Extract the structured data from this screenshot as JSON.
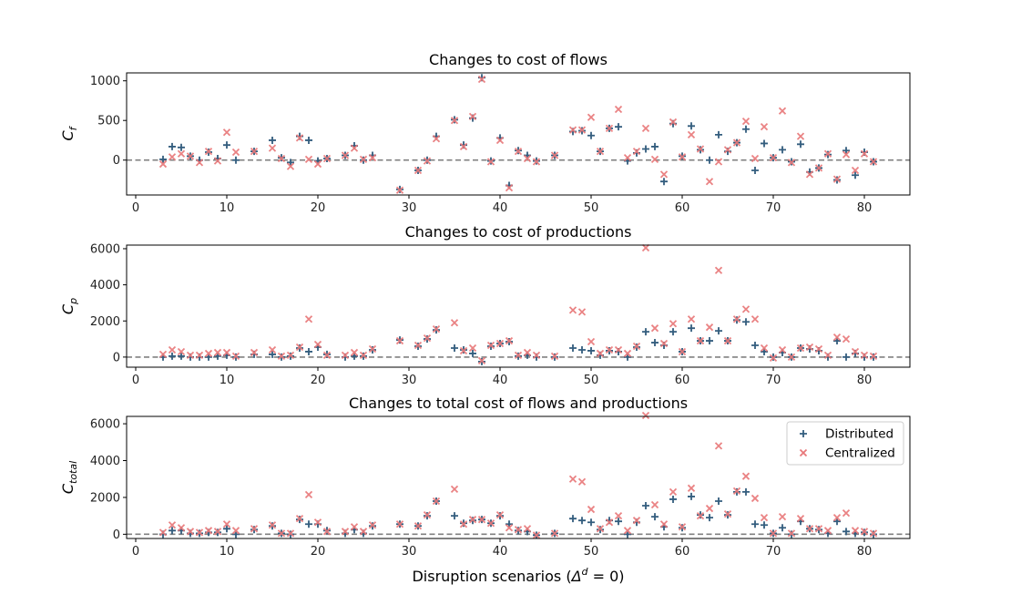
{
  "xlabel": "Disruption scenarios (Δ^d = 0)",
  "legend": {
    "placement": "upper right of bottom panel",
    "items": [
      "Distributed",
      "Centralized"
    ]
  },
  "colors": {
    "distributed": "#335d7e",
    "centralized": "#e8787a",
    "baseline": "#808080"
  },
  "chart_data": [
    {
      "type": "scatter",
      "title": "Changes to cost of flows",
      "ylabel": "C_f",
      "xlim": [
        -1,
        85
      ],
      "ylim": [
        -440,
        1100
      ],
      "xticks": [
        0,
        10,
        20,
        30,
        40,
        50,
        60,
        70,
        80
      ],
      "yticks": [
        0,
        500,
        1000
      ],
      "baseline": 0,
      "series": [
        {
          "name": "Distributed",
          "marker": "plus",
          "x": [
            3,
            4,
            5,
            6,
            7,
            8,
            9,
            10,
            11,
            13,
            15,
            16,
            17,
            18,
            19,
            20,
            21,
            23,
            24,
            25,
            26,
            29,
            31,
            32,
            33,
            35,
            36,
            37,
            38,
            39,
            40,
            41,
            42,
            43,
            44,
            46,
            48,
            49,
            50,
            51,
            52,
            53,
            54,
            55,
            56,
            57,
            58,
            59,
            60,
            61,
            62,
            63,
            64,
            65,
            66,
            67,
            68,
            69,
            70,
            71,
            72,
            73,
            74,
            75,
            76,
            77,
            78,
            79,
            80,
            81
          ],
          "y": [
            10,
            170,
            160,
            50,
            0,
            100,
            20,
            190,
            0,
            110,
            250,
            30,
            -30,
            300,
            250,
            -10,
            20,
            60,
            180,
            0,
            60,
            -370,
            -130,
            0,
            300,
            510,
            190,
            530,
            1040,
            -10,
            280,
            -320,
            120,
            60,
            -10,
            60,
            360,
            370,
            310,
            110,
            400,
            420,
            -10,
            90,
            140,
            170,
            -270,
            460,
            50,
            430,
            130,
            0,
            320,
            110,
            220,
            390,
            -130,
            210,
            30,
            130,
            -20,
            200,
            -150,
            -100,
            70,
            -250,
            120,
            -190,
            100,
            -20
          ]
        },
        {
          "name": "Centralized",
          "marker": "x",
          "x": [
            3,
            4,
            5,
            6,
            7,
            8,
            9,
            10,
            11,
            13,
            15,
            16,
            17,
            18,
            19,
            20,
            21,
            23,
            24,
            25,
            26,
            29,
            31,
            32,
            33,
            35,
            36,
            37,
            38,
            39,
            40,
            41,
            42,
            43,
            44,
            46,
            48,
            49,
            50,
            51,
            52,
            53,
            54,
            55,
            56,
            57,
            58,
            59,
            60,
            61,
            62,
            63,
            64,
            65,
            66,
            67,
            68,
            69,
            70,
            71,
            72,
            73,
            74,
            75,
            76,
            77,
            78,
            79,
            80,
            81
          ],
          "y": [
            -50,
            40,
            80,
            50,
            -30,
            110,
            -10,
            350,
            100,
            110,
            150,
            20,
            -80,
            280,
            10,
            -50,
            20,
            60,
            150,
            10,
            30,
            -380,
            -130,
            -10,
            270,
            500,
            170,
            550,
            1020,
            -20,
            250,
            -350,
            110,
            20,
            -20,
            60,
            380,
            380,
            540,
            110,
            400,
            640,
            30,
            110,
            400,
            10,
            -180,
            480,
            40,
            320,
            140,
            -270,
            -20,
            130,
            220,
            490,
            20,
            420,
            30,
            620,
            -30,
            300,
            -180,
            -100,
            80,
            -240,
            70,
            -130,
            80,
            -20
          ]
        }
      ]
    },
    {
      "type": "scatter",
      "title": "Changes to cost of productions",
      "ylabel": "C_p",
      "xlim": [
        -1,
        85
      ],
      "ylim": [
        -560,
        6200
      ],
      "xticks": [
        0,
        10,
        20,
        30,
        40,
        50,
        60,
        70,
        80
      ],
      "yticks": [
        0,
        2000,
        4000,
        6000
      ],
      "baseline": 0,
      "series": [
        {
          "name": "Distributed",
          "marker": "plus",
          "x": [
            3,
            4,
            5,
            6,
            7,
            8,
            9,
            10,
            11,
            13,
            15,
            16,
            17,
            18,
            19,
            20,
            21,
            23,
            24,
            25,
            26,
            29,
            31,
            32,
            33,
            35,
            36,
            37,
            38,
            39,
            40,
            41,
            42,
            43,
            44,
            46,
            48,
            49,
            50,
            51,
            52,
            53,
            54,
            55,
            56,
            57,
            58,
            59,
            60,
            61,
            62,
            63,
            64,
            65,
            66,
            67,
            68,
            69,
            70,
            71,
            72,
            73,
            74,
            75,
            76,
            77,
            78,
            79,
            80,
            81
          ],
          "y": [
            0,
            50,
            50,
            0,
            0,
            0,
            50,
            100,
            0,
            150,
            150,
            0,
            50,
            500,
            300,
            550,
            150,
            0,
            50,
            50,
            400,
            950,
            600,
            1000,
            1500,
            500,
            400,
            200,
            -250,
            600,
            750,
            850,
            50,
            100,
            0,
            0,
            500,
            400,
            350,
            100,
            350,
            300,
            0,
            550,
            1400,
            800,
            650,
            1400,
            300,
            1600,
            900,
            900,
            1450,
            900,
            2050,
            1950,
            650,
            300,
            0,
            250,
            0,
            500,
            450,
            350,
            0,
            900,
            0,
            200,
            0,
            0
          ]
        },
        {
          "name": "Centralized",
          "marker": "x",
          "x": [
            3,
            4,
            5,
            6,
            7,
            8,
            9,
            10,
            11,
            13,
            15,
            16,
            17,
            18,
            19,
            20,
            21,
            23,
            24,
            25,
            26,
            29,
            31,
            32,
            33,
            35,
            36,
            37,
            38,
            39,
            40,
            41,
            42,
            43,
            44,
            46,
            48,
            49,
            50,
            51,
            52,
            53,
            54,
            55,
            56,
            57,
            58,
            59,
            60,
            61,
            62,
            63,
            64,
            65,
            66,
            67,
            68,
            69,
            70,
            71,
            72,
            73,
            74,
            75,
            76,
            77,
            78,
            79,
            80,
            81
          ],
          "y": [
            150,
            400,
            300,
            100,
            100,
            200,
            250,
            250,
            50,
            250,
            400,
            50,
            100,
            550,
            2100,
            700,
            100,
            100,
            250,
            100,
            450,
            900,
            650,
            1050,
            1550,
            1900,
            350,
            500,
            -200,
            650,
            750,
            900,
            100,
            250,
            100,
            50,
            2600,
            2500,
            850,
            200,
            400,
            400,
            200,
            600,
            6050,
            1600,
            750,
            1850,
            300,
            2100,
            900,
            1650,
            4800,
            900,
            2100,
            2650,
            2100,
            500,
            -50,
            400,
            0,
            500,
            550,
            450,
            100,
            1100,
            1000,
            300,
            100,
            50
          ]
        }
      ]
    },
    {
      "type": "scatter",
      "title": "Changes to total cost of flows and productions",
      "ylabel": "C_total",
      "xlim": [
        -1,
        85
      ],
      "ylim": [
        -230,
        6400
      ],
      "xticks": [
        0,
        10,
        20,
        30,
        40,
        50,
        60,
        70,
        80
      ],
      "yticks": [
        0,
        2000,
        4000,
        6000
      ],
      "baseline": 0,
      "series": [
        {
          "name": "Distributed",
          "marker": "plus",
          "x": [
            3,
            4,
            5,
            6,
            7,
            8,
            9,
            10,
            11,
            13,
            15,
            16,
            17,
            18,
            19,
            20,
            21,
            23,
            24,
            25,
            26,
            29,
            31,
            32,
            33,
            35,
            36,
            37,
            38,
            39,
            40,
            41,
            42,
            43,
            44,
            46,
            48,
            49,
            50,
            51,
            52,
            53,
            54,
            55,
            56,
            57,
            58,
            59,
            60,
            61,
            62,
            63,
            64,
            65,
            66,
            67,
            68,
            69,
            70,
            71,
            72,
            73,
            74,
            75,
            76,
            77,
            78,
            79,
            80,
            81
          ],
          "y": [
            0,
            200,
            200,
            50,
            50,
            100,
            100,
            300,
            0,
            250,
            450,
            50,
            0,
            800,
            550,
            550,
            200,
            50,
            250,
            50,
            450,
            550,
            450,
            1000,
            1800,
            1000,
            600,
            750,
            800,
            600,
            1000,
            550,
            200,
            150,
            -50,
            50,
            850,
            750,
            650,
            250,
            750,
            700,
            0,
            650,
            1550,
            950,
            400,
            1900,
            350,
            2050,
            1050,
            900,
            1800,
            1050,
            2300,
            2300,
            550,
            500,
            50,
            350,
            0,
            700,
            300,
            250,
            50,
            700,
            150,
            50,
            100,
            0
          ]
        },
        {
          "name": "Centralized",
          "marker": "x",
          "x": [
            3,
            4,
            5,
            6,
            7,
            8,
            9,
            10,
            11,
            13,
            15,
            16,
            17,
            18,
            19,
            20,
            21,
            23,
            24,
            25,
            26,
            29,
            31,
            32,
            33,
            35,
            36,
            37,
            38,
            39,
            40,
            41,
            42,
            43,
            44,
            46,
            48,
            49,
            50,
            51,
            52,
            53,
            54,
            55,
            56,
            57,
            58,
            59,
            60,
            61,
            62,
            63,
            64,
            65,
            66,
            67,
            68,
            69,
            70,
            71,
            72,
            73,
            74,
            75,
            76,
            77,
            78,
            79,
            80,
            81
          ],
          "y": [
            100,
            500,
            350,
            150,
            100,
            200,
            150,
            550,
            200,
            300,
            500,
            50,
            50,
            850,
            2150,
            650,
            150,
            150,
            400,
            150,
            500,
            550,
            450,
            1050,
            1800,
            2450,
            550,
            800,
            800,
            600,
            1050,
            350,
            250,
            300,
            -50,
            50,
            3000,
            2850,
            1350,
            300,
            650,
            1000,
            200,
            750,
            6450,
            1600,
            550,
            2300,
            400,
            2500,
            1000,
            1400,
            4800,
            1100,
            2350,
            3150,
            1950,
            900,
            50,
            950,
            50,
            850,
            300,
            300,
            200,
            900,
            1150,
            200,
            150,
            50
          ]
        }
      ]
    }
  ]
}
